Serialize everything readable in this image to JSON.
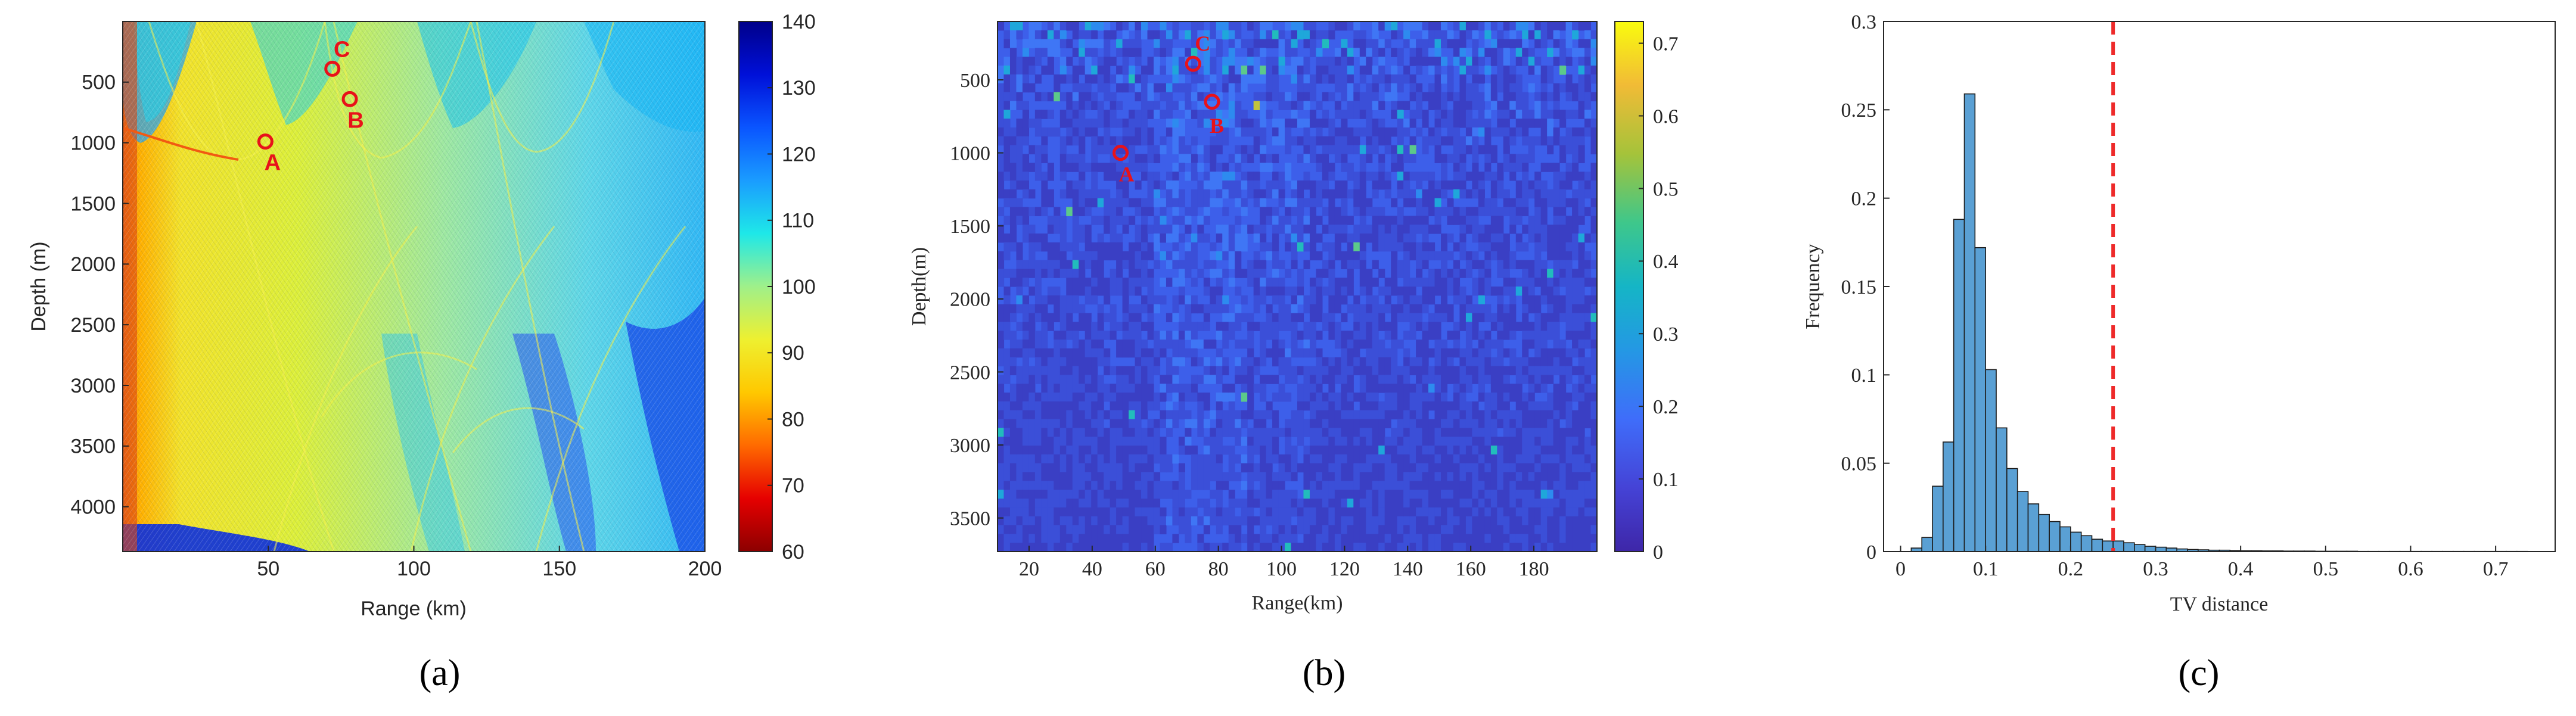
{
  "chart_data": [
    {
      "type": "heatmap",
      "panel_label": "(a)",
      "xlabel": "Range (km)",
      "ylabel": "Depth (m)",
      "xlim": [
        0,
        200
      ],
      "ylim": [
        4370,
        0
      ],
      "x_ticks": [
        50,
        100,
        150,
        200
      ],
      "y_ticks": [
        500,
        1000,
        1500,
        2000,
        2500,
        3000,
        3500,
        4000
      ],
      "colorbar": {
        "min": 60,
        "max": 140,
        "ticks": [
          60,
          70,
          80,
          90,
          100,
          110,
          120,
          130,
          140
        ]
      },
      "points": [
        {
          "label": "A",
          "range_km": 49,
          "depth_m": 990
        },
        {
          "label": "B",
          "range_km": 78,
          "depth_m": 640
        },
        {
          "label": "C",
          "range_km": 72,
          "depth_m": 390
        }
      ],
      "marker_color": "#e8121a"
    },
    {
      "type": "heatmap",
      "panel_label": "(b)",
      "xlabel": "Range(km)",
      "ylabel": "Depth(m)",
      "xlim": [
        10,
        200
      ],
      "ylim": [
        3730,
        100
      ],
      "x_ticks": [
        20,
        40,
        60,
        80,
        100,
        120,
        140,
        160,
        180
      ],
      "y_ticks": [
        500,
        1000,
        1500,
        2000,
        2500,
        3000,
        3500
      ],
      "colorbar": {
        "min": 0,
        "max": 0.73,
        "ticks": [
          0,
          0.1,
          0.2,
          0.3,
          0.4,
          0.5,
          0.6,
          0.7
        ]
      },
      "points": [
        {
          "label": "A",
          "range_km": 49,
          "depth_m": 1000
        },
        {
          "label": "B",
          "range_km": 78,
          "depth_m": 650
        },
        {
          "label": "C",
          "range_km": 72,
          "depth_m": 390
        }
      ],
      "marker_color": "#e8121a"
    },
    {
      "type": "bar",
      "panel_label": "(c)",
      "xlabel": "TV distance",
      "ylabel": "Frequency",
      "xlim": [
        -0.02,
        0.77
      ],
      "ylim": [
        0,
        0.3
      ],
      "x_ticks": [
        0,
        0.1,
        0.2,
        0.3,
        0.4,
        0.5,
        0.6,
        0.7
      ],
      "y_ticks": [
        0,
        0.05,
        0.1,
        0.15,
        0.2,
        0.25,
        0.3
      ],
      "bin_width": 0.0125,
      "bin_starts": [
        0.0125,
        0.025,
        0.0375,
        0.05,
        0.0625,
        0.075,
        0.0875,
        0.1,
        0.1125,
        0.125,
        0.1375,
        0.15,
        0.1625,
        0.175,
        0.1875,
        0.2,
        0.2125,
        0.225,
        0.2375,
        0.25,
        0.2625,
        0.275,
        0.2875,
        0.3,
        0.3125,
        0.325,
        0.3375,
        0.35,
        0.3625,
        0.375,
        0.3875,
        0.4,
        0.4125,
        0.425,
        0.4375,
        0.45,
        0.4625,
        0.475,
        0.4875,
        0.5,
        0.5125,
        0.525,
        0.5375,
        0.55,
        0.5625,
        0.575,
        0.5875,
        0.6,
        0.6125,
        0.625,
        0.6375,
        0.65,
        0.6625,
        0.675,
        0.6875,
        0.7,
        0.7125,
        0.725
      ],
      "values": [
        0.002,
        0.008,
        0.037,
        0.062,
        0.188,
        0.259,
        0.172,
        0.103,
        0.07,
        0.047,
        0.034,
        0.027,
        0.021,
        0.017,
        0.014,
        0.011,
        0.009,
        0.007,
        0.006,
        0.006,
        0.005,
        0.004,
        0.003,
        0.0025,
        0.002,
        0.0015,
        0.0012,
        0.001,
        0.0008,
        0.0008,
        0.0006,
        0.0005,
        0.0005,
        0.0004,
        0.0004,
        0.0003,
        0.0003,
        0.0003,
        0.0002,
        0.0002,
        0.0002,
        0.0002,
        0.0001,
        0.0001,
        0.0001,
        0.0001,
        0.0001,
        0.0001,
        0.0001,
        0.0001,
        0.0001,
        0.0001,
        0.0001,
        0.0001,
        0.0001,
        0.0001,
        0.0001,
        0.0001
      ],
      "bar_color": "#5aa0d4",
      "threshold": {
        "x": 0.25,
        "color": "#ee2a2a"
      }
    }
  ]
}
